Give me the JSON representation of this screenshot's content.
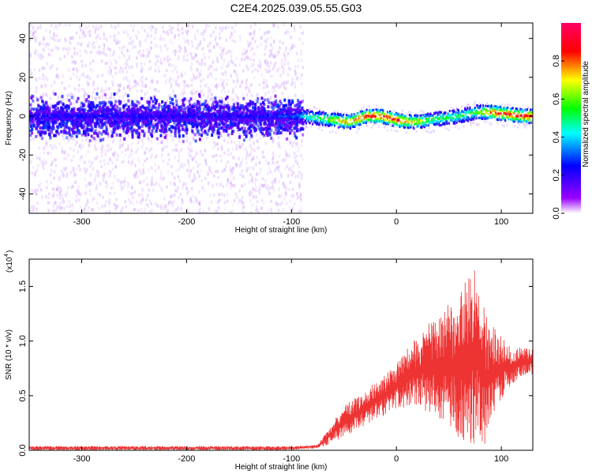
{
  "title": "C2E4.2025.039.05.55.G03",
  "chart_data": [
    {
      "type": "heatmap",
      "xlabel": "Height of straight line (km)",
      "ylabel": "Frequency (Hz)",
      "xlim": [
        -350,
        130
      ],
      "ylim": [
        -50,
        48
      ],
      "xticks": [
        -300,
        -200,
        -100,
        0,
        100
      ],
      "yticks": [
        -40,
        -20,
        0,
        20,
        40
      ],
      "colorbar": {
        "label": "Normalized spectral amplitude",
        "range": [
          0.0,
          1.0
        ],
        "ticks": [
          "0.0",
          "0.2",
          "0.4",
          "0.6",
          "0.8"
        ],
        "colors": [
          "#ffffff",
          "#9900ff",
          "#0000ff",
          "#00ffff",
          "#00ff00",
          "#ffff00",
          "#ff0000",
          "#ff0066"
        ]
      },
      "ridge": {
        "x": [
          -350,
          -300,
          -250,
          -200,
          -150,
          -100,
          -90,
          -75,
          -60,
          -45,
          -30,
          -15,
          0,
          15,
          30,
          45,
          60,
          75,
          90,
          105,
          120,
          130
        ],
        "freq": [
          0,
          0,
          0,
          0,
          0,
          0,
          0,
          -1,
          -2,
          -3,
          0,
          0,
          -2,
          -3,
          -2,
          -1,
          0,
          2,
          2,
          1,
          0,
          0
        ],
        "amplitude": [
          0.25,
          0.25,
          0.25,
          0.25,
          0.25,
          0.3,
          0.45,
          0.55,
          0.7,
          0.8,
          0.9,
          0.9,
          0.9,
          0.75,
          0.6,
          0.55,
          0.55,
          0.6,
          0.85,
          0.9,
          0.9,
          0.9
        ]
      },
      "noise_region": {
        "x_range": [
          -350,
          -90
        ],
        "freq_range": [
          -50,
          48
        ]
      }
    },
    {
      "type": "line",
      "xlabel": "Height of straight line (km)",
      "ylabel": "SNR (10 * v/v)",
      "y_multiplier": "(x10",
      "y_multiplier_exp": "4",
      "y_multiplier_close": ")",
      "xlim": [
        -350,
        130
      ],
      "ylim": [
        0,
        1.75
      ],
      "xticks": [
        -300,
        -200,
        -100,
        0,
        100
      ],
      "yticks": [
        "0.0",
        "0.5",
        "1.0",
        "1.5"
      ],
      "color": "#ee3333",
      "envelope": {
        "x": [
          -350,
          -200,
          -100,
          -75,
          -65,
          -55,
          -45,
          -35,
          -25,
          -15,
          0,
          20,
          40,
          60,
          75,
          85,
          95,
          110,
          130
        ],
        "upper": [
          0.04,
          0.04,
          0.04,
          0.05,
          0.2,
          0.35,
          0.45,
          0.5,
          0.6,
          0.65,
          0.8,
          1.05,
          1.25,
          1.45,
          1.7,
          1.25,
          1.1,
          0.95,
          0.95
        ],
        "lower": [
          0.0,
          0.0,
          0.0,
          0.02,
          0.05,
          0.1,
          0.15,
          0.2,
          0.25,
          0.3,
          0.38,
          0.4,
          0.3,
          0.1,
          0.05,
          0.05,
          0.4,
          0.6,
          0.7
        ]
      }
    }
  ]
}
